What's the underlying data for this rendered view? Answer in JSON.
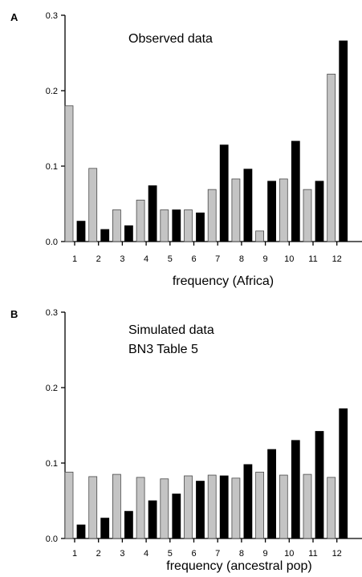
{
  "chart_data": [
    {
      "type": "bar",
      "panel_label": "A",
      "annotation": [
        "Observed data"
      ],
      "xlabel": "frequency (Africa)",
      "ylabel": "",
      "ylim": [
        0,
        0.3
      ],
      "yticks": [
        "0.0",
        "0.1",
        "0.2",
        "0.3"
      ],
      "categories": [
        "1",
        "2",
        "3",
        "4",
        "5",
        "6",
        "7",
        "8",
        "9",
        "10",
        "11",
        "12"
      ],
      "series": [
        {
          "color": "#c4c4c4",
          "values": [
            0.18,
            0.097,
            0.042,
            0.055,
            0.042,
            0.042,
            0.069,
            0.083,
            0.014,
            0.083,
            0.069,
            0.222
          ]
        },
        {
          "color": "#000000",
          "values": [
            0.027,
            0.016,
            0.021,
            0.074,
            0.042,
            0.038,
            0.128,
            0.096,
            0.08,
            0.133,
            0.08,
            0.266
          ]
        }
      ]
    },
    {
      "type": "bar",
      "panel_label": "B",
      "annotation": [
        "Simulated data",
        "BN3 Table 5"
      ],
      "xlabel": "frequency (ancestral pop)",
      "ylabel": "",
      "ylim": [
        0,
        0.3
      ],
      "yticks": [
        "0.0",
        "0.1",
        "0.2",
        "0.3"
      ],
      "categories": [
        "1",
        "2",
        "3",
        "4",
        "5",
        "6",
        "7",
        "8",
        "9",
        "10",
        "11",
        "12"
      ],
      "series": [
        {
          "color": "#c4c4c4",
          "values": [
            0.088,
            0.082,
            0.085,
            0.081,
            0.079,
            0.083,
            0.084,
            0.08,
            0.088,
            0.084,
            0.085,
            0.081
          ]
        },
        {
          "color": "#000000",
          "values": [
            0.018,
            0.027,
            0.036,
            0.05,
            0.059,
            0.076,
            0.083,
            0.098,
            0.118,
            0.13,
            0.142,
            0.172
          ]
        }
      ]
    }
  ]
}
